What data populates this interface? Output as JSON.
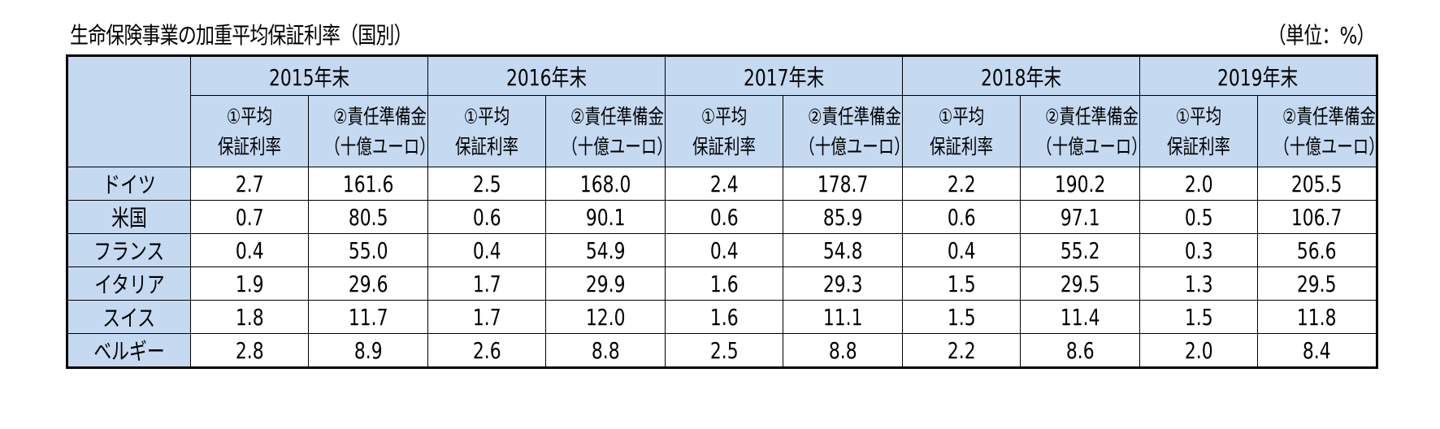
{
  "title": "生命保険事業の加重平均保証利率（国別）",
  "unit": "（単位：%）",
  "table": {
    "years": [
      "2015年末",
      "2016年末",
      "2017年末",
      "2018年末",
      "2019年末"
    ],
    "sub_headers": {
      "rate": [
        "①平均",
        "保証利率"
      ],
      "reserve": [
        "②責任準備金",
        "（十億ユーロ）"
      ]
    },
    "rows": [
      {
        "country": "ドイツ",
        "values": [
          "2.7",
          "161.6",
          "2.5",
          "168.0",
          "2.4",
          "178.7",
          "2.2",
          "190.2",
          "2.0",
          "205.5"
        ]
      },
      {
        "country": "米国",
        "values": [
          "0.7",
          "80.5",
          "0.6",
          "90.1",
          "0.6",
          "85.9",
          "0.6",
          "97.1",
          "0.5",
          "106.7"
        ]
      },
      {
        "country": "フランス",
        "values": [
          "0.4",
          "55.0",
          "0.4",
          "54.9",
          "0.4",
          "54.8",
          "0.4",
          "55.2",
          "0.3",
          "56.6"
        ]
      },
      {
        "country": "イタリア",
        "values": [
          "1.9",
          "29.6",
          "1.7",
          "29.9",
          "1.6",
          "29.3",
          "1.5",
          "29.5",
          "1.3",
          "29.5"
        ]
      },
      {
        "country": "スイス",
        "values": [
          "1.8",
          "11.7",
          "1.7",
          "12.0",
          "1.6",
          "11.1",
          "1.5",
          "11.4",
          "1.5",
          "11.8"
        ]
      },
      {
        "country": "ベルギー",
        "values": [
          "2.8",
          "8.9",
          "2.6",
          "8.8",
          "2.5",
          "8.8",
          "2.2",
          "8.6",
          "2.0",
          "8.4"
        ]
      }
    ],
    "header_color": "#c5d9f1"
  }
}
